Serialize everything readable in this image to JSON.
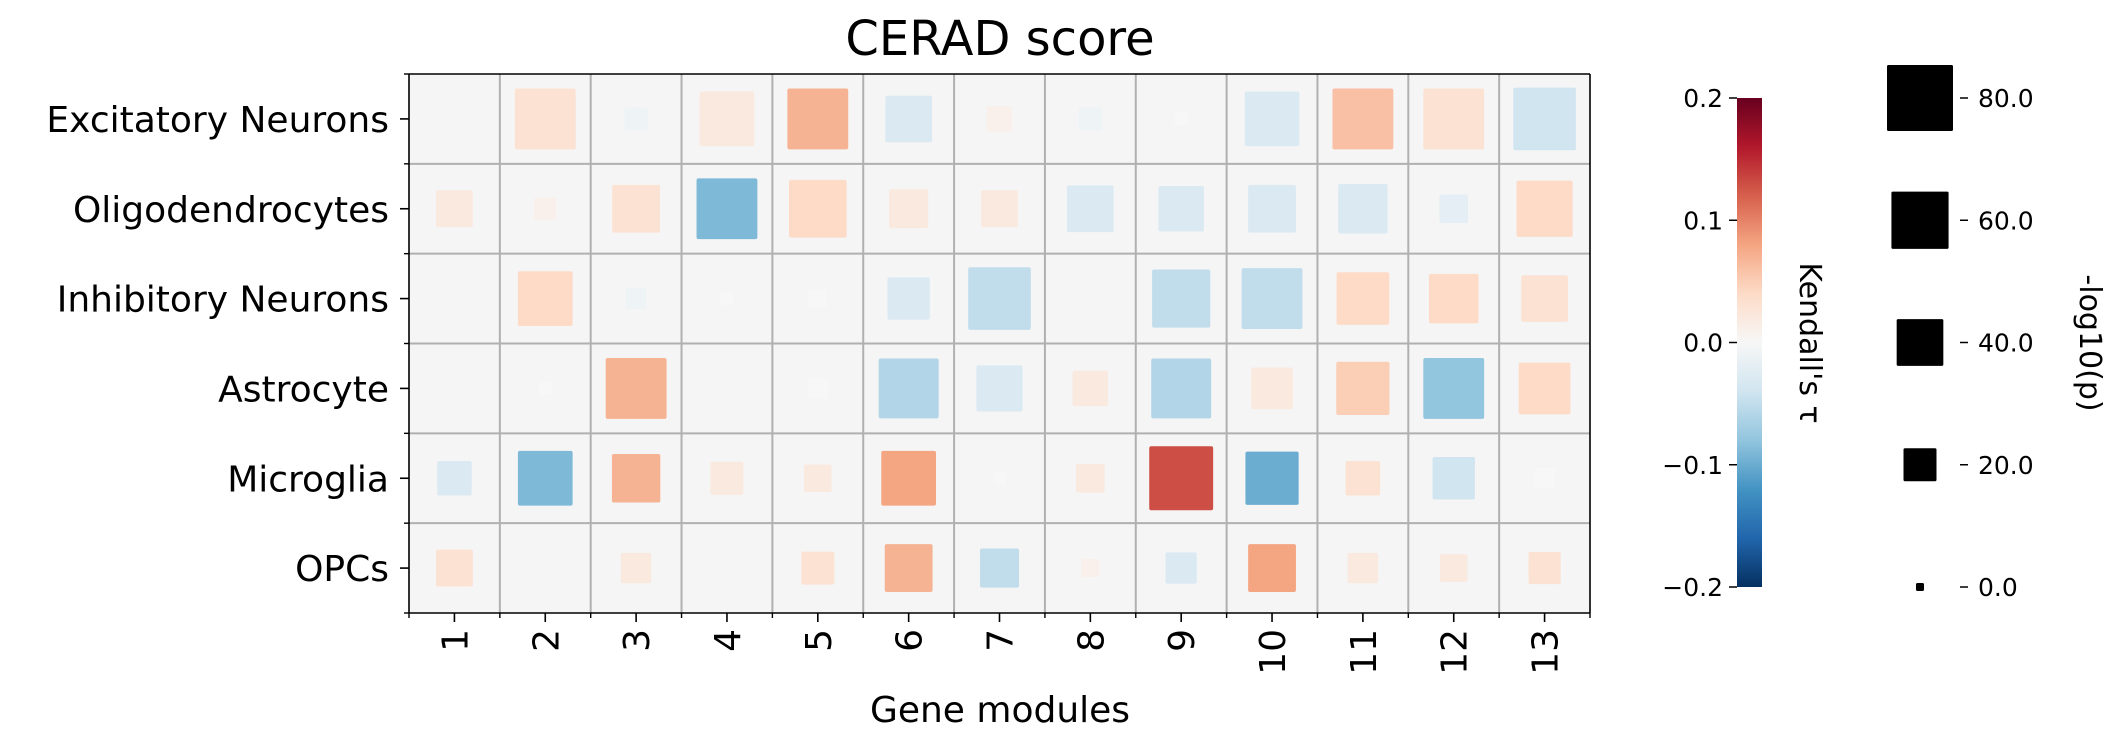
{
  "chart_data": {
    "type": "heatmap",
    "title": "CERAD score",
    "xlabel": "Gene modules",
    "ylabel": "",
    "rows": [
      "Excitatory Neurons",
      "Oligodendrocytes",
      "Inhibitory Neurons",
      "Astrocyte",
      "Microglia",
      "OPCs"
    ],
    "columns": [
      "1",
      "2",
      "3",
      "4",
      "5",
      "6",
      "7",
      "8",
      "9",
      "10",
      "11",
      "12",
      "13"
    ],
    "tau": [
      [
        0.0,
        0.03,
        -0.01,
        0.02,
        0.07,
        -0.03,
        0.01,
        -0.01,
        0.0,
        -0.03,
        0.06,
        0.03,
        -0.04
      ],
      [
        0.02,
        0.01,
        0.03,
        -0.09,
        0.04,
        0.02,
        0.02,
        -0.03,
        -0.03,
        -0.03,
        -0.03,
        -0.02,
        0.04
      ],
      [
        0.0,
        0.04,
        -0.01,
        0.0,
        0.0,
        -0.03,
        -0.05,
        0.0,
        -0.05,
        -0.05,
        0.04,
        0.04,
        0.03
      ],
      [
        0.0,
        0.0,
        0.07,
        0.0,
        0.0,
        -0.06,
        -0.03,
        0.02,
        -0.06,
        0.02,
        0.05,
        -0.08,
        0.04
      ],
      [
        -0.03,
        -0.09,
        0.07,
        0.02,
        0.02,
        0.08,
        0.0,
        0.02,
        0.13,
        -0.1,
        0.03,
        -0.04,
        0.0
      ],
      [
        0.03,
        0.0,
        0.02,
        0.0,
        0.03,
        0.07,
        -0.05,
        0.01,
        -0.03,
        0.08,
        0.02,
        0.02,
        0.03
      ]
    ],
    "neg_log10_p": [
      [
        0,
        68,
        10,
        55,
        68,
        40,
        12,
        10,
        3,
        55,
        68,
        68,
        72
      ],
      [
        25,
        9,
        42,
        68,
        61,
        28,
        25,
        40,
        38,
        42,
        45,
        15,
        58
      ],
      [
        0,
        55,
        8,
        3,
        6,
        33,
        72,
        0,
        62,
        68,
        51,
        45,
        40
      ],
      [
        0,
        3,
        68,
        0,
        8,
        66,
        39,
        23,
        66,
        32,
        52,
        68,
        49
      ],
      [
        22,
        55,
        43,
        20,
        14,
        55,
        3,
        15,
        75,
        52,
        22,
        33,
        8
      ],
      [
        25,
        0,
        17,
        0,
        20,
        42,
        28,
        6,
        18,
        42,
        17,
        14,
        19
      ]
    ],
    "colorbar": {
      "label": "Kendall's τ",
      "range": [
        -0.2,
        0.2
      ],
      "ticks": [
        "0.2",
        "0.1",
        "0.0",
        "−0.1",
        "−0.2"
      ],
      "colormap": "RdBu_r",
      "stops": [
        "#053061",
        "#2166ac",
        "#4393c3",
        "#92c5de",
        "#d1e5f0",
        "#f7f7f7",
        "#fddbc7",
        "#f4a582",
        "#d6604d",
        "#b2182b",
        "#67001f"
      ]
    },
    "size_legend": {
      "label": "-log10(p)",
      "values": [
        80,
        60,
        40,
        20,
        0
      ],
      "ticks": [
        "80.0",
        "60.0",
        "40.0",
        "20.0",
        "0.0"
      ],
      "marker_color": "#000000"
    },
    "cell_background": "#f5f5f5",
    "grid_color": "#b0b0b0",
    "grid": true
  }
}
